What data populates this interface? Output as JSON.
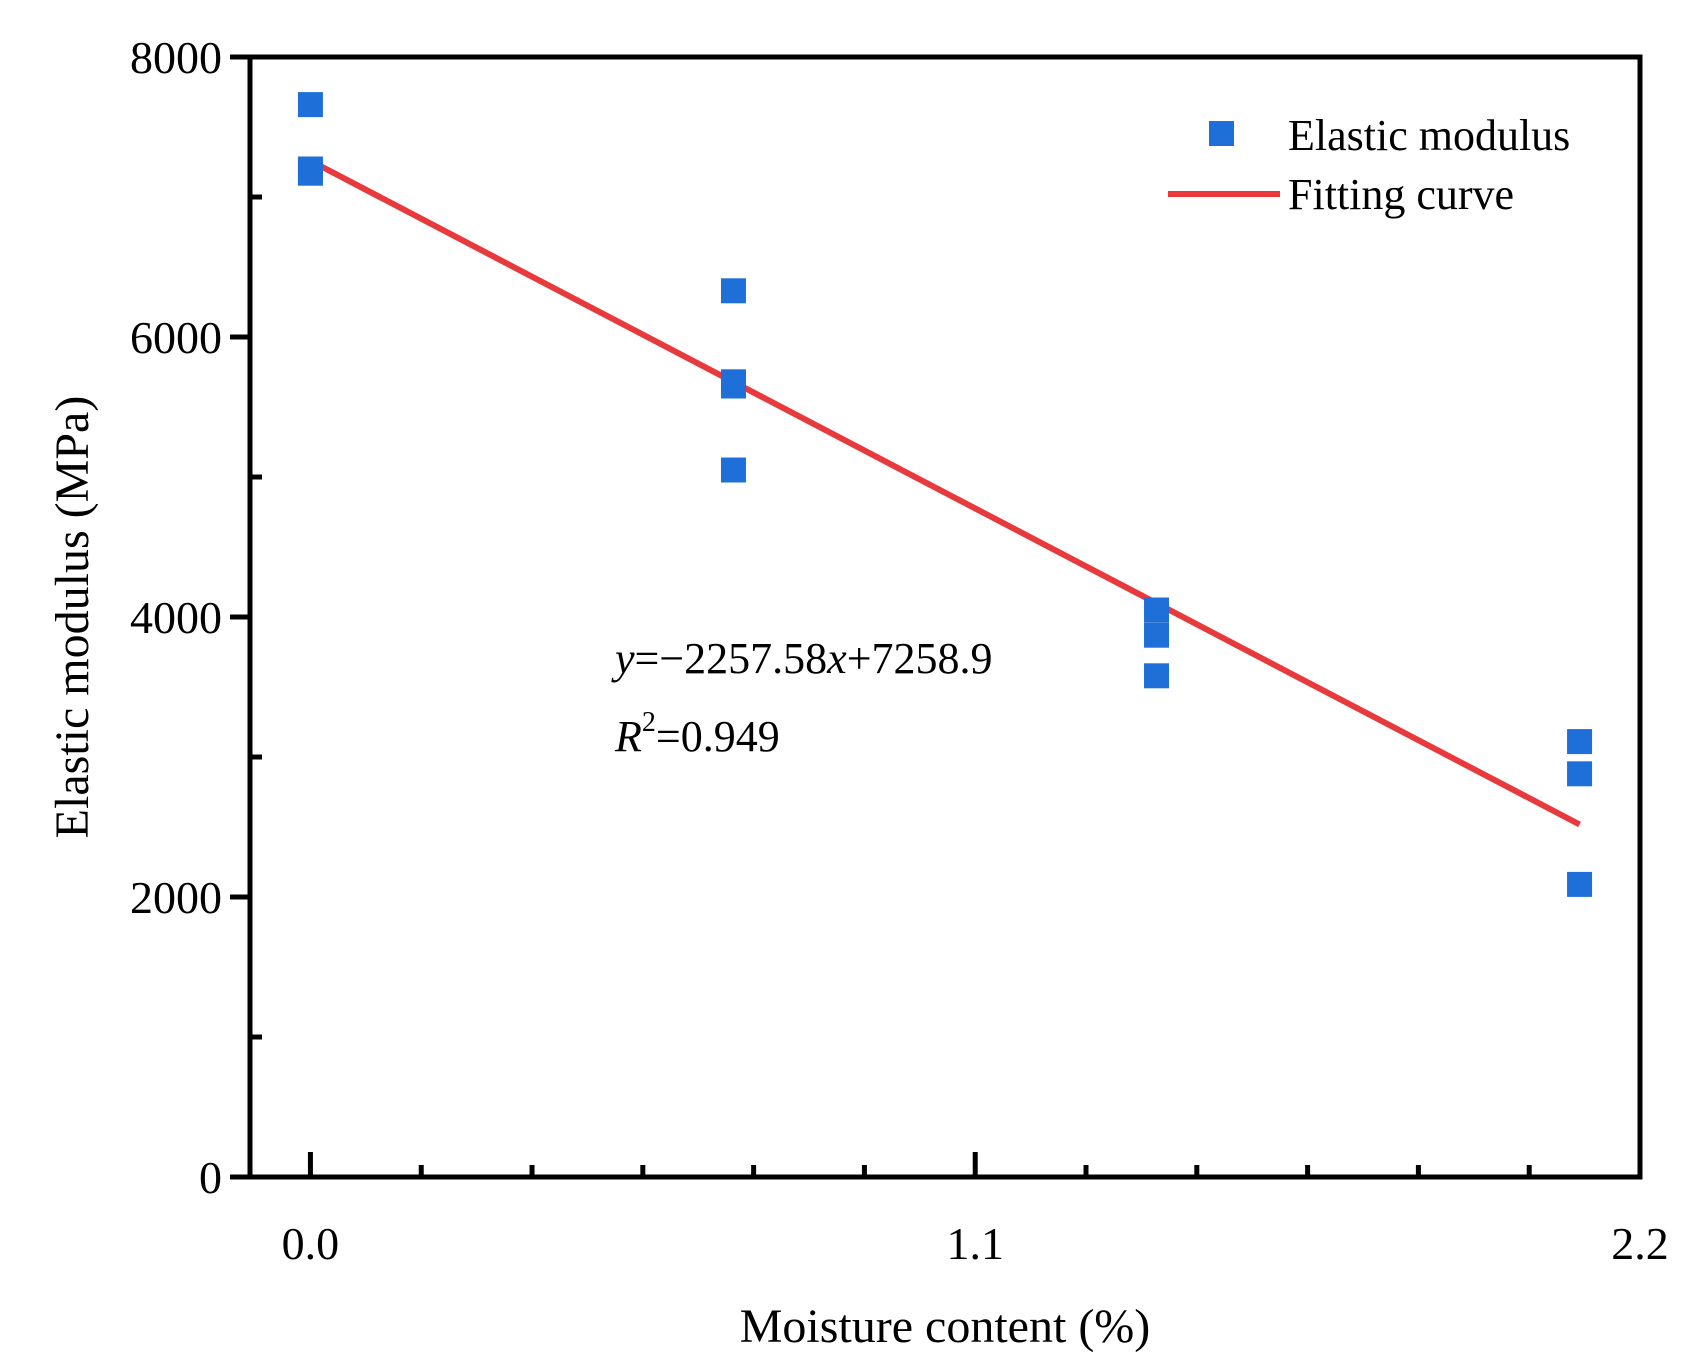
{
  "chart_data": {
    "type": "scatter",
    "title": "",
    "xlabel": "Moisture content (%)",
    "ylabel": "Elastic modulus (MPa)",
    "xlim": [
      -0.1,
      2.2
    ],
    "ylim": [
      0,
      8000
    ],
    "x_ticks": [
      0.0,
      1.1,
      2.2
    ],
    "x_tick_labels": [
      "0.0",
      "1.1",
      "2.2"
    ],
    "y_ticks": [
      0,
      2000,
      4000,
      6000,
      8000
    ],
    "y_tick_labels": [
      "0",
      "2000",
      "4000",
      "6000",
      "8000"
    ],
    "grid": false,
    "legend_position": "top-right",
    "series": [
      {
        "name": "Elastic modulus",
        "kind": "scatter",
        "marker": "square",
        "color": "#1f6fd9",
        "points": [
          {
            "x": 0.0,
            "y": 7660
          },
          {
            "x": 0.0,
            "y": 7200
          },
          {
            "x": 0.0,
            "y": 7170
          },
          {
            "x": 0.7,
            "y": 6330
          },
          {
            "x": 0.7,
            "y": 5680
          },
          {
            "x": 0.7,
            "y": 5650
          },
          {
            "x": 0.7,
            "y": 5050
          },
          {
            "x": 1.4,
            "y": 4050
          },
          {
            "x": 1.4,
            "y": 3870
          },
          {
            "x": 1.4,
            "y": 3580
          },
          {
            "x": 2.1,
            "y": 3110
          },
          {
            "x": 2.1,
            "y": 2880
          },
          {
            "x": 2.1,
            "y": 2090
          }
        ]
      },
      {
        "name": "Fitting curve",
        "kind": "line",
        "color": "#e8393d",
        "slope": -2257.58,
        "intercept": 7258.9,
        "x_range": [
          0.0,
          2.1
        ]
      }
    ],
    "annotations": {
      "equation": {
        "y_var": "y",
        "eq_body": "=−2257.58",
        "x_var": "x",
        "eq_tail": "+7258.9"
      },
      "r_squared": {
        "var": "R",
        "sup": "2",
        "value_text": "=0.949"
      }
    }
  }
}
